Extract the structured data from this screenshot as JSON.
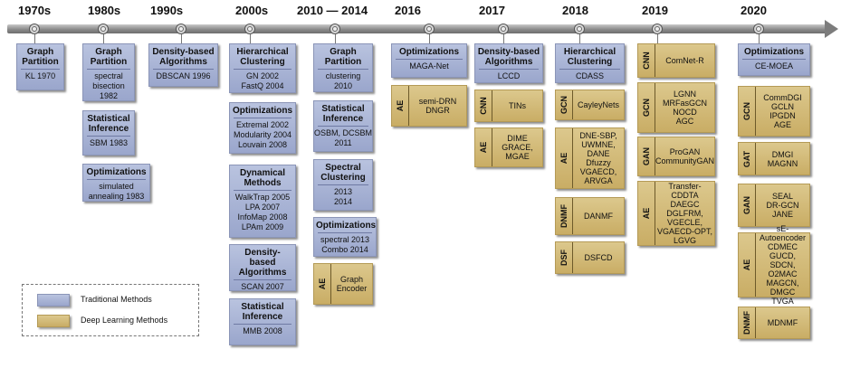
{
  "years": [
    "1970s",
    "1980s",
    "1990s",
    "2000s",
    "2010 — 2014",
    "2016",
    "2017",
    "2018",
    "2019",
    "2020"
  ],
  "traditional": {
    "t1970_a": {
      "head": "Graph Partition",
      "items": [
        "KL 1970"
      ]
    },
    "t1980_a": {
      "head": "Graph Partition",
      "items": [
        "spectral bisection",
        "1982"
      ]
    },
    "t1980_b": {
      "head": "Statistical Inference",
      "items": [
        "SBM 1983"
      ]
    },
    "t1980_c": {
      "head": "Optimizations",
      "items": [
        "simulated annealing 1983"
      ]
    },
    "t1990_a": {
      "head": "Density-based Algorithms",
      "items": [
        "DBSCAN 1996"
      ]
    },
    "t2000_a": {
      "head": "Hierarchical Clustering",
      "items": [
        "GN 2002",
        "FastQ 2004"
      ]
    },
    "t2000_b": {
      "head": "Optimizations",
      "items": [
        "Extremal 2002",
        "Modularity 2004",
        "Louvain 2008"
      ]
    },
    "t2000_c": {
      "head": "Dynamical Methods",
      "items": [
        "WalkTrap 2005",
        "LPA 2007",
        "InfoMap 2008",
        "LPAm 2009"
      ]
    },
    "t2000_d": {
      "head": "Density-based Algorithms",
      "items": [
        "SCAN 2007"
      ]
    },
    "t2000_e": {
      "head": "Statistical Inference",
      "items": [
        "MMB 2008"
      ]
    },
    "t2010_a": {
      "head": "Graph Partition",
      "items": [
        "clustering",
        "2010"
      ]
    },
    "t2010_b": {
      "head": "Statistical Inference",
      "items": [
        "OSBM, DCSBM",
        "2011"
      ]
    },
    "t2010_c": {
      "head": "Spectral Clustering",
      "items": [
        "2013",
        "2014"
      ]
    },
    "t2010_d": {
      "head": "Optimizations",
      "items": [
        "spectral 2013",
        "Combo 2014"
      ]
    },
    "t2016_a": {
      "head": "Optimizations",
      "items": [
        "MAGA-Net"
      ]
    },
    "t2017_a": {
      "head": "Density-based Algorithms",
      "items": [
        "LCCD"
      ]
    },
    "t2018_a": {
      "head": "Hierarchical Clustering",
      "items": [
        "CDASS"
      ]
    },
    "t2020_a": {
      "head": "Optimizations",
      "items": [
        "CE-MOEA"
      ]
    }
  },
  "deep": {
    "d2010_ae": {
      "tag": "AE",
      "items": [
        "Graph",
        "Encoder"
      ]
    },
    "d2016_ae": {
      "tag": "AE",
      "items": [
        "semi-DRN",
        "DNGR"
      ]
    },
    "d2017_cnn": {
      "tag": "CNN",
      "items": [
        "TINs"
      ]
    },
    "d2017_ae": {
      "tag": "AE",
      "items": [
        "DIME",
        "GRACE,",
        "MGAE"
      ]
    },
    "d2018_gcn": {
      "tag": "GCN",
      "items": [
        "CayleyNets"
      ]
    },
    "d2018_ae": {
      "tag": "AE",
      "items": [
        "DNE-SBP,",
        "UWMNE,",
        "DANE",
        "Dfuzzy",
        "VGAECD,",
        "ARVGA"
      ]
    },
    "d2018_dnmf": {
      "tag": "DNMF",
      "items": [
        "DANMF"
      ]
    },
    "d2018_dsf": {
      "tag": "DSF",
      "items": [
        "DSFCD"
      ]
    },
    "d2019_cnn": {
      "tag": "CNN",
      "items": [
        "ComNet-R"
      ]
    },
    "d2019_gcn": {
      "tag": "GCN",
      "items": [
        "LGNN",
        "MRFasGCN",
        "NOCD",
        "AGC"
      ]
    },
    "d2019_gan": {
      "tag": "GAN",
      "items": [
        "ProGAN",
        "CommunityGAN"
      ]
    },
    "d2019_ae": {
      "tag": "AE",
      "items": [
        "Transfer-CDDTA",
        "DAEGC",
        "DGLFRM,",
        "VGECLE,",
        "VGAECD-OPT,",
        "LGVG"
      ]
    },
    "d2020_gcn": {
      "tag": "GCN",
      "items": [
        "CommDGI",
        "GCLN",
        "IPGDN",
        "AGE"
      ]
    },
    "d2020_gat": {
      "tag": "GAT",
      "items": [
        "DMGI",
        "MAGNN"
      ]
    },
    "d2020_gan": {
      "tag": "GAN",
      "items": [
        "SEAL",
        "DR-GCN",
        "JANE"
      ]
    },
    "d2020_ae": {
      "tag": "AE",
      "items": [
        "sE-Autoencoder",
        "CDMEC",
        "GUCD, SDCN,",
        "O2MAC",
        "MAGCN, DMGC",
        "TVGA"
      ]
    },
    "d2020_dnmf": {
      "tag": "DNMF",
      "items": [
        "MDNMF"
      ]
    }
  },
  "legend": {
    "traditional": "Traditional Methods",
    "deep": "Deep Learning Methods"
  },
  "colors": {
    "traditional": "#a7b1d6",
    "deep": "#d4bc7a"
  }
}
